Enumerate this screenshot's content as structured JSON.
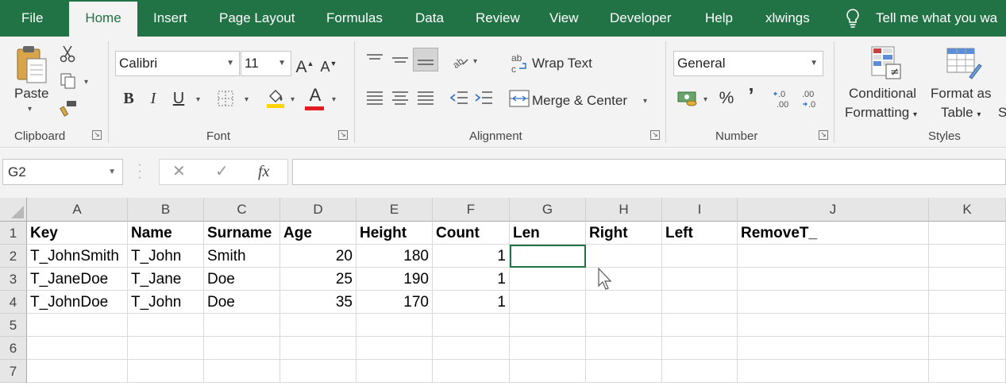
{
  "tabs": [
    "File",
    "Home",
    "Insert",
    "Page Layout",
    "Formulas",
    "Data",
    "Review",
    "View",
    "Developer",
    "Help",
    "xlwings"
  ],
  "active_tab": "Home",
  "tell_me": "Tell me what you wa",
  "ribbon": {
    "clipboard": {
      "paste_label": "Paste",
      "group_label": "Clipboard"
    },
    "font": {
      "font_name": "Calibri",
      "font_size": "11",
      "grow_label": "A",
      "shrink_label": "A",
      "bold_label": "B",
      "italic_label": "I",
      "underline_label": "U",
      "font_color_label": "A",
      "group_label": "Font"
    },
    "alignment": {
      "wrap_text_label": "Wrap Text",
      "merge_center_label": "Merge & Center",
      "group_label": "Alignment"
    },
    "number": {
      "format_value": "General",
      "percent_label": "%",
      "comma_label": "’",
      "inc_decimal_label": "←.0\n.00",
      "dec_decimal_label": ".00\n→.0",
      "group_label": "Number"
    },
    "styles": {
      "conditional_formatting_line1": "Conditional",
      "conditional_formatting_line2": "Formatting",
      "format_as_table_line1": "Format as",
      "format_as_table_line2": "Table",
      "cell_styles_partial": "S",
      "group_label": "Styles"
    }
  },
  "formula_bar": {
    "name_box": "G2",
    "fx_label": "fx",
    "formula": ""
  },
  "columns": [
    "A",
    "B",
    "C",
    "D",
    "E",
    "F",
    "G",
    "H",
    "I",
    "J",
    "K"
  ],
  "rows": [
    "1",
    "2",
    "3",
    "4",
    "5",
    "6",
    "7"
  ],
  "cells": [
    [
      "Key",
      "Name",
      "Surname",
      "Age",
      "Height",
      "Count",
      "Len",
      "Right",
      "Left",
      "RemoveT_",
      ""
    ],
    [
      "T_JohnSmith",
      "T_John",
      "Smith",
      "20",
      "180",
      "1",
      "",
      "",
      "",
      "",
      ""
    ],
    [
      "T_JaneDoe",
      "T_Jane",
      "Doe",
      "25",
      "190",
      "1",
      "",
      "",
      "",
      "",
      ""
    ],
    [
      "T_JohnDoe",
      "T_John",
      "Doe",
      "35",
      "170",
      "1",
      "",
      "",
      "",
      "",
      ""
    ],
    [
      "",
      "",
      "",
      "",
      "",
      "",
      "",
      "",
      "",
      "",
      ""
    ],
    [
      "",
      "",
      "",
      "",
      "",
      "",
      "",
      "",
      "",
      "",
      ""
    ],
    [
      "",
      "",
      "",
      "",
      "",
      "",
      "",
      "",
      "",
      "",
      ""
    ]
  ],
  "selected_cell": "G2",
  "colors": {
    "accent": "#217346",
    "ribbon_bg": "#f3f3f3",
    "header_bg": "#e6e6e6"
  }
}
